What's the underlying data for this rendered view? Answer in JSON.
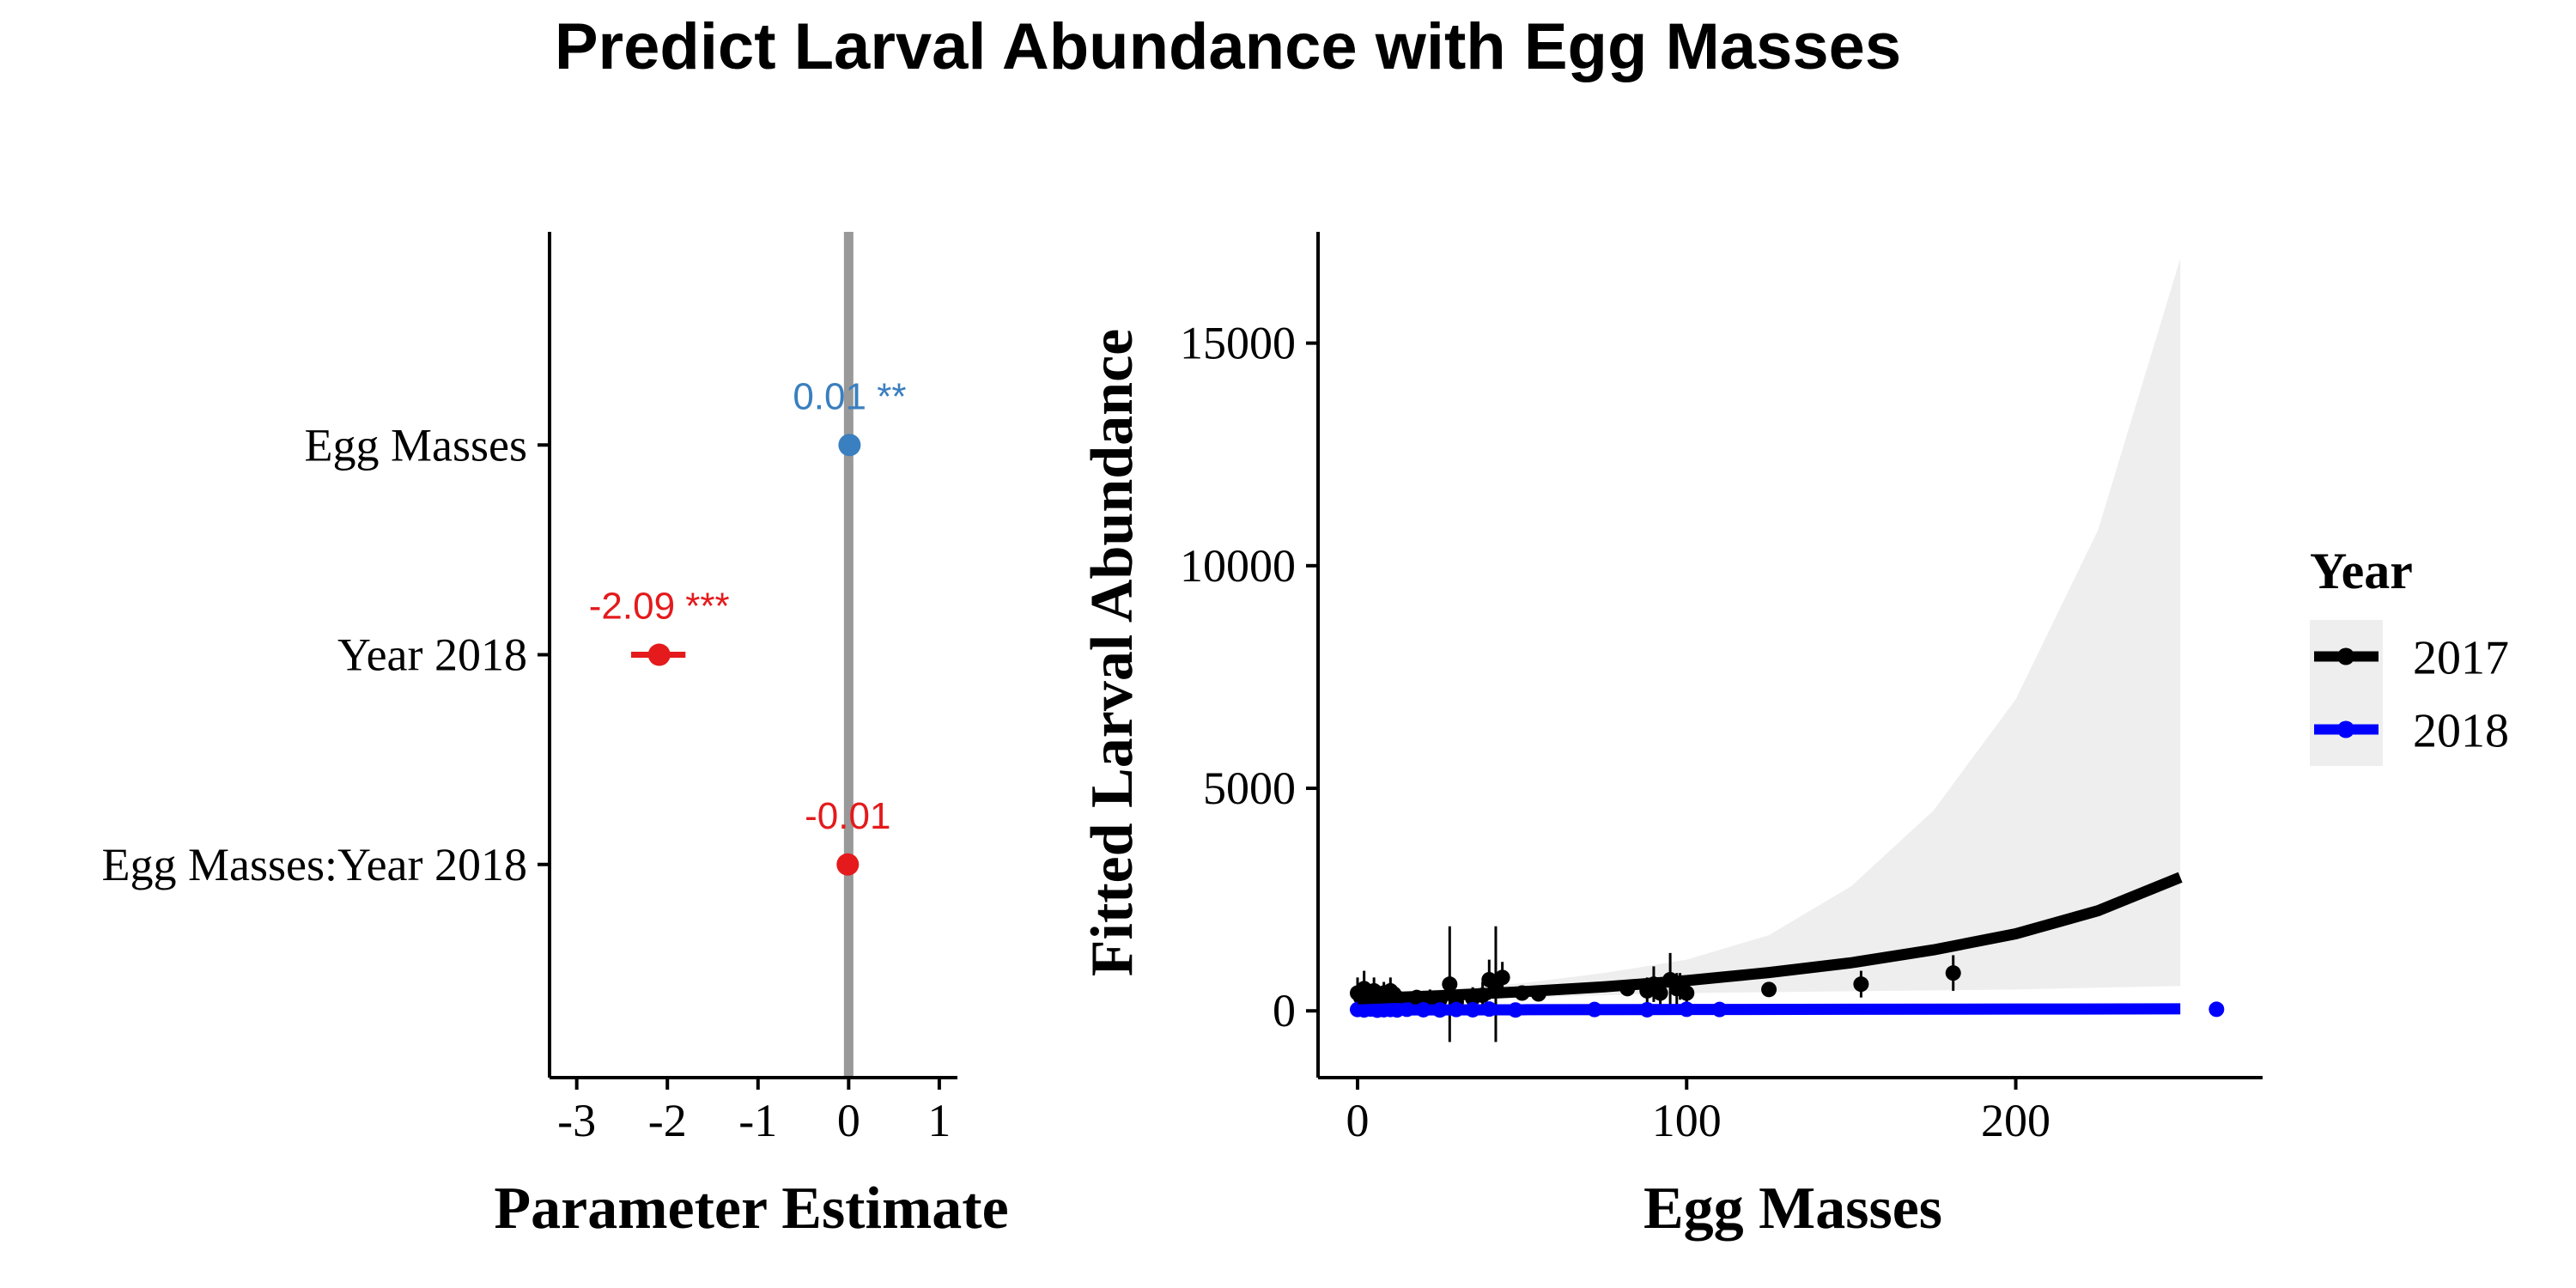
{
  "title": "Predict Larval Abundance with Egg Masses",
  "colors": {
    "positive": "#3a7fbf",
    "negative": "#e41a1c",
    "zero_line": "#999999",
    "y2017": "#000000",
    "y2018": "#0000ff",
    "ribbon": "#eeeeee"
  },
  "chart_data": [
    {
      "type": "scatter",
      "subtype": "coefficient-plot",
      "xlabel": "Parameter Estimate",
      "ylabel": "",
      "xlim": [
        -3.3,
        1.2
      ],
      "xticks": [
        -3,
        -2,
        -1,
        0,
        1
      ],
      "terms": [
        {
          "label": "Egg Masses",
          "estimate": 0.01,
          "lower": 0.0,
          "upper": 0.02,
          "text": "0.01 **",
          "color": "positive"
        },
        {
          "label": "Year 2018",
          "estimate": -2.09,
          "lower": -2.4,
          "upper": -1.8,
          "text": "-2.09 ***",
          "color": "negative"
        },
        {
          "label": "Egg Masses:Year 2018",
          "estimate": -0.01,
          "lower": -0.02,
          "upper": 0.0,
          "text": "-0.01",
          "color": "negative"
        }
      ],
      "reference_line": 0,
      "grid": false
    },
    {
      "type": "line",
      "xlabel": "Egg Masses",
      "ylabel": "Fitted Larval Abundance",
      "xlim": [
        -12,
        275
      ],
      "ylim": [
        -1500,
        17500
      ],
      "xticks": [
        0,
        100,
        200
      ],
      "yticks": [
        0,
        5000,
        10000,
        15000
      ],
      "legend": {
        "title": "Year",
        "position": "right",
        "entries": [
          "2017",
          "2018"
        ]
      },
      "grid": false,
      "series": [
        {
          "name": "2017",
          "color": "y2017",
          "line": {
            "x": [
              0,
              25,
              50,
              75,
              100,
              125,
              150,
              175,
              200,
              225,
              250
            ],
            "y": [
              270,
              340,
              430,
              540,
              680,
              860,
              1080,
              1370,
              1730,
              2250,
              3000
            ]
          },
          "ribbon": {
            "x": [
              0,
              25,
              50,
              75,
              100,
              125,
              150,
              175,
              200,
              225,
              250
            ],
            "lower": [
              180,
              240,
              300,
              350,
              400,
              420,
              440,
              460,
              480,
              520,
              560
            ],
            "upper": [
              380,
              480,
              620,
              850,
              1150,
              1700,
              2800,
              4500,
              7000,
              10800,
              16900
            ]
          },
          "points": {
            "x": [
              0,
              1,
              2,
              3,
              4,
              5,
              6,
              8,
              9,
              10,
              11,
              12,
              15,
              18,
              22,
              25,
              28,
              30,
              35,
              38,
              40,
              42,
              44,
              50,
              55,
              82,
              88,
              90,
              92,
              95,
              97,
              98,
              100,
              125,
              153,
              181
            ],
            "y": [
              400,
              300,
              500,
              250,
              350,
              450,
              300,
              400,
              350,
              450,
              380,
              300,
              250,
              300,
              280,
              250,
              600,
              200,
              280,
              350,
              700,
              600,
              750,
              400,
              380,
              500,
              450,
              600,
              400,
              700,
              500,
              550,
              400,
              480,
              600,
              850
            ],
            "err": [
              350,
              200,
              400,
              150,
              200,
              300,
              150,
              250,
              200,
              300,
              200,
              150,
              100,
              150,
              200,
              100,
              1300,
              150,
              250,
              300,
              450,
              1300,
              350,
              100,
              100,
              150,
              300,
              400,
              300,
              600,
              350,
              300,
              200,
              150,
              300,
              400
            ]
          }
        },
        {
          "name": "2018",
          "color": "y2018",
          "line": {
            "x": [
              0,
              50,
              100,
              150,
              200,
              250
            ],
            "y": [
              20,
              25,
              30,
              35,
              40,
              45
            ]
          },
          "ribbon": {
            "x": [
              0,
              250
            ],
            "lower": [
              10,
              10
            ],
            "upper": [
              40,
              140
            ]
          },
          "points": {
            "x": [
              0,
              2,
              4,
              6,
              8,
              10,
              12,
              15,
              20,
              25,
              30,
              35,
              40,
              48,
              72,
              88,
              100,
              110,
              261
            ],
            "y": [
              30,
              20,
              40,
              15,
              25,
              30,
              20,
              35,
              25,
              20,
              30,
              25,
              40,
              20,
              30,
              25,
              35,
              30,
              35
            ],
            "err": [
              20,
              15,
              25,
              10,
              15,
              20,
              15,
              20,
              15,
              15,
              20,
              15,
              20,
              15,
              20,
              15,
              20,
              15,
              20
            ]
          }
        }
      ]
    }
  ]
}
